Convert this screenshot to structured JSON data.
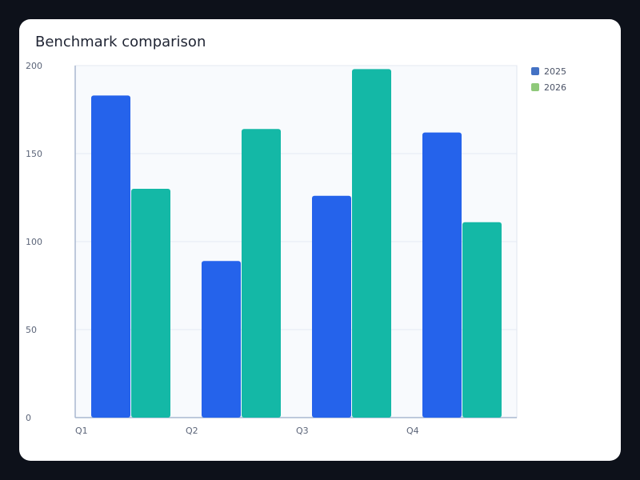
{
  "colors": {
    "page_background": "#0d111a",
    "card_background": "#ffffff",
    "plot_background": "#f8fafd",
    "series_2025_bar": "#2563eb",
    "series_2026_bar": "#14b8a6",
    "legend_2025_swatch": "#4472c4",
    "legend_2026_swatch": "#8fc97a"
  },
  "chart_data": {
    "type": "bar",
    "title": "Benchmark comparison",
    "xlabel": "",
    "ylabel": "",
    "categories": [
      "Q1",
      "Q2",
      "Q3",
      "Q4"
    ],
    "series": [
      {
        "name": "2025",
        "values": [
          183,
          89,
          126,
          162
        ]
      },
      {
        "name": "2026",
        "values": [
          130,
          164,
          198,
          111
        ]
      }
    ],
    "ylim": [
      0,
      200
    ],
    "yticks": [
      "0",
      "50",
      "100",
      "150",
      "200"
    ],
    "grid": true,
    "legend_position": "top-right"
  }
}
